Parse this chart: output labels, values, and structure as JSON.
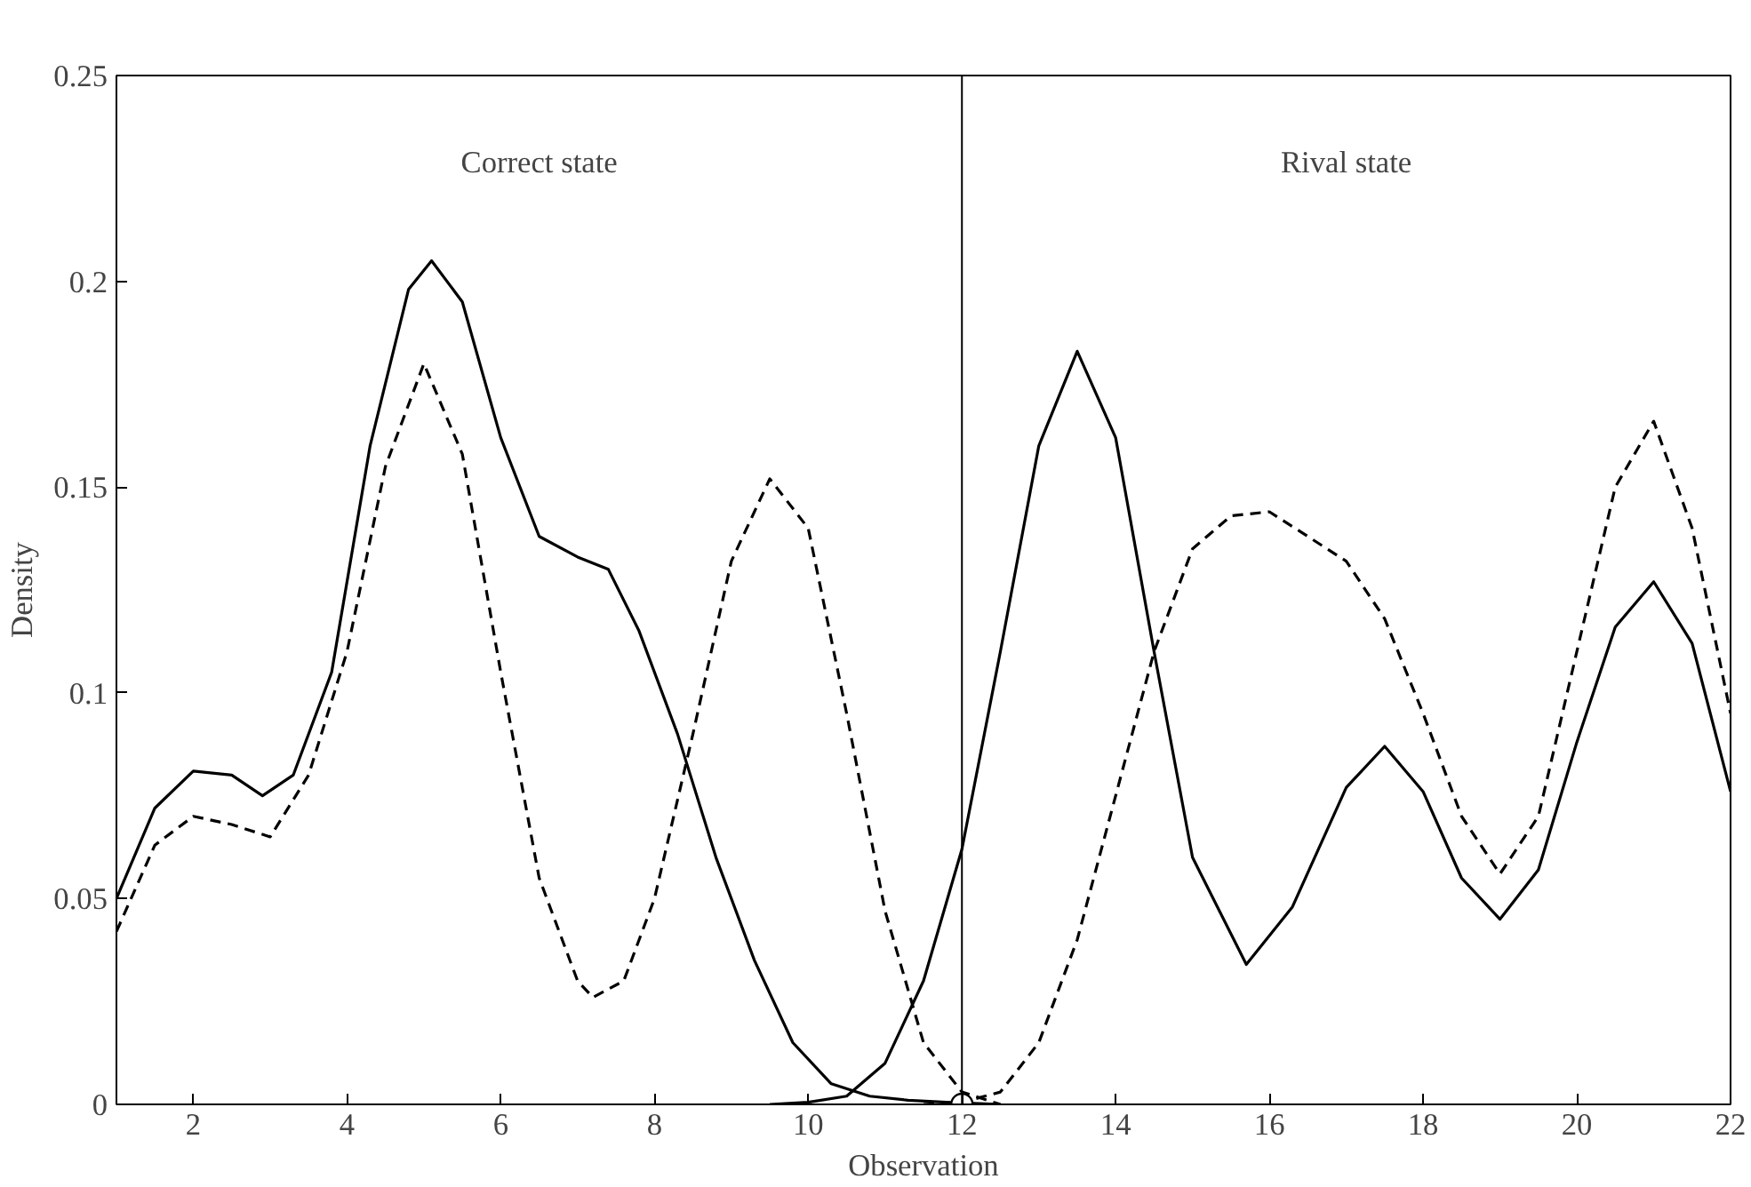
{
  "chart_data": {
    "type": "line",
    "xlabel": "Observation",
    "ylabel": "Density",
    "xlim": [
      1,
      22
    ],
    "ylim": [
      0,
      0.25
    ],
    "xticks": [
      2,
      4,
      6,
      8,
      10,
      12,
      14,
      16,
      18,
      20,
      22
    ],
    "yticks": [
      0,
      0.05,
      0.1,
      0.15,
      0.2,
      0.25
    ],
    "grid": false,
    "annotations": [
      "Correct state",
      "Rival state"
    ],
    "ref_lines": [
      {
        "axis": "x",
        "value": 12,
        "label": null,
        "color": "#000000"
      }
    ],
    "series": [
      {
        "color": "#000000",
        "line_style": "solid",
        "x": [
          1,
          1.5,
          2,
          2.5,
          2.9,
          3.3,
          3.8,
          4.3,
          4.8,
          5.1,
          5.5,
          6,
          6.5,
          7,
          7.4,
          7.8,
          8.3,
          8.8,
          9.3,
          9.8,
          10.3,
          10.8,
          11.3,
          11.8,
          12.5
        ],
        "values": [
          0.05,
          0.072,
          0.081,
          0.08,
          0.075,
          0.08,
          0.105,
          0.16,
          0.198,
          0.205,
          0.195,
          0.162,
          0.138,
          0.133,
          0.13,
          0.115,
          0.09,
          0.06,
          0.035,
          0.015,
          0.005,
          0.002,
          0.001,
          0.0005,
          0.0
        ]
      },
      {
        "color": "#000000",
        "line_style": "solid",
        "x": [
          9.5,
          10,
          10.5,
          11,
          11.5,
          12,
          12.5,
          13,
          13.5,
          14,
          14.5,
          15,
          15.7,
          16.3,
          17,
          17.5,
          18,
          18.5,
          19,
          19.5,
          20,
          20.5,
          21,
          21.5,
          22
        ],
        "values": [
          0.0,
          0.0005,
          0.002,
          0.01,
          0.03,
          0.062,
          0.11,
          0.16,
          0.183,
          0.162,
          0.11,
          0.06,
          0.034,
          0.048,
          0.077,
          0.087,
          0.076,
          0.055,
          0.045,
          0.057,
          0.088,
          0.116,
          0.127,
          0.112,
          0.076
        ]
      },
      {
        "color": "#000000",
        "line_style": "dashed",
        "x": [
          1,
          1.5,
          2,
          2.5,
          3,
          3.5,
          4,
          4.5,
          5,
          5.5,
          6,
          6.5,
          7,
          7.2,
          7.6,
          8,
          8.5,
          9,
          9.5,
          10,
          10.5,
          11,
          11.5,
          12,
          12.5
        ],
        "values": [
          0.042,
          0.063,
          0.07,
          0.068,
          0.065,
          0.08,
          0.11,
          0.155,
          0.18,
          0.158,
          0.105,
          0.055,
          0.03,
          0.026,
          0.03,
          0.05,
          0.09,
          0.132,
          0.152,
          0.14,
          0.095,
          0.047,
          0.015,
          0.003,
          0.0
        ]
      },
      {
        "color": "#000000",
        "line_style": "dashed",
        "x": [
          11.5,
          12,
          12.5,
          13,
          13.5,
          14,
          14.5,
          15,
          15.5,
          16,
          16.5,
          17,
          17.5,
          18,
          18.5,
          19,
          19.5,
          20,
          20.5,
          21,
          21.5,
          22
        ],
        "values": [
          0.0,
          0.0005,
          0.003,
          0.015,
          0.04,
          0.075,
          0.11,
          0.135,
          0.143,
          0.144,
          0.138,
          0.132,
          0.118,
          0.095,
          0.07,
          0.056,
          0.07,
          0.11,
          0.15,
          0.166,
          0.14,
          0.095
        ]
      },
      {
        "type": "scatter",
        "marker": "circle",
        "color": "#000000",
        "x": [
          12
        ],
        "values": [
          0
        ]
      }
    ]
  }
}
